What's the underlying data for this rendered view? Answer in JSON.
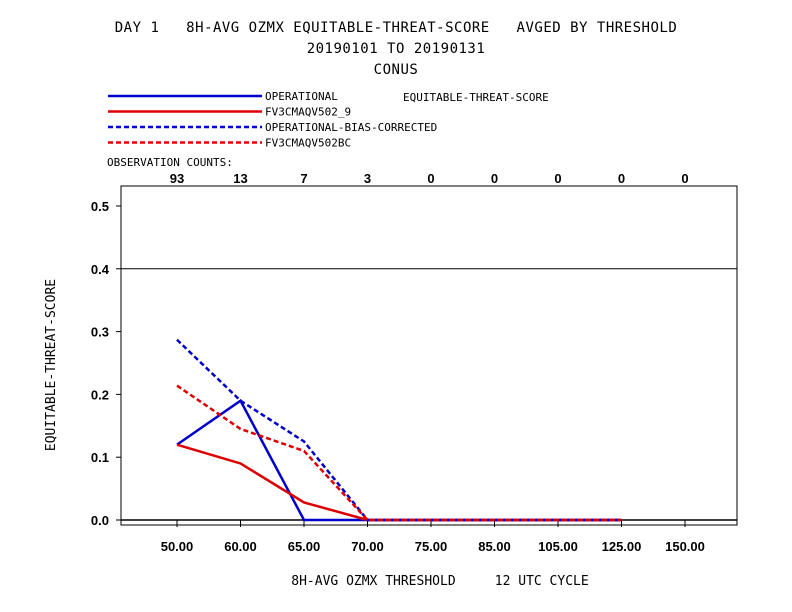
{
  "header": {
    "line1": "DAY 1   8H-AVG OZMX EQUITABLE-THREAT-SCORE   AVGED BY THRESHOLD",
    "line2": "20190101 TO 20190131",
    "line3": "CONUS"
  },
  "colors": {
    "blue": "#0000cc",
    "red": "#dd0000",
    "axis": "#000000"
  },
  "chart_data": {
    "type": "line",
    "title": "DAY 1   8H-AVG OZMX EQUITABLE-THREAT-SCORE   AVGED BY THRESHOLD",
    "metric_label": "EQUITABLE-THREAT-SCORE",
    "ylabel": "EQUITABLE-THREAT-SCORE",
    "xlabel": "8H-AVG OZMX THRESHOLD     12 UTC CYCLE",
    "categories": [
      "50.00",
      "60.00",
      "65.00",
      "70.00",
      "75.00",
      "85.00",
      "105.00",
      "125.00",
      "150.00"
    ],
    "observation_counts_label": "OBSERVATION COUNTS:",
    "observation_counts": [
      "93",
      "13",
      "7",
      "3",
      "0",
      "0",
      "0",
      "0",
      "0"
    ],
    "ylim": [
      0,
      0.52
    ],
    "yticks": [
      "0.0",
      "0.1",
      "0.2",
      "0.3",
      "0.4",
      "0.5"
    ],
    "reference_line": 0.4,
    "legend_position": "top-left",
    "series": [
      {
        "name": "OPERATIONAL",
        "color": "#0000cc",
        "dash": "solid",
        "values": [
          0.12,
          0.19,
          0.0,
          0.0,
          0.0,
          0.0,
          0.0,
          0.0,
          null
        ]
      },
      {
        "name": "FV3CMAQV502_9",
        "color": "#dd0000",
        "dash": "solid",
        "values": [
          0.12,
          0.09,
          0.028,
          0.0,
          0.0,
          0.0,
          0.0,
          0.0,
          null
        ]
      },
      {
        "name": "OPERATIONAL-BIAS-CORRECTED",
        "color": "#0000cc",
        "dash": "dashed",
        "values": [
          0.287,
          0.19,
          0.125,
          0.0,
          0.0,
          0.0,
          0.0,
          0.0,
          null
        ]
      },
      {
        "name": "FV3CMAQV502BC",
        "color": "#dd0000",
        "dash": "dashed",
        "values": [
          0.214,
          0.145,
          0.11,
          0.0,
          0.0,
          0.0,
          0.0,
          0.0,
          null
        ]
      }
    ]
  }
}
